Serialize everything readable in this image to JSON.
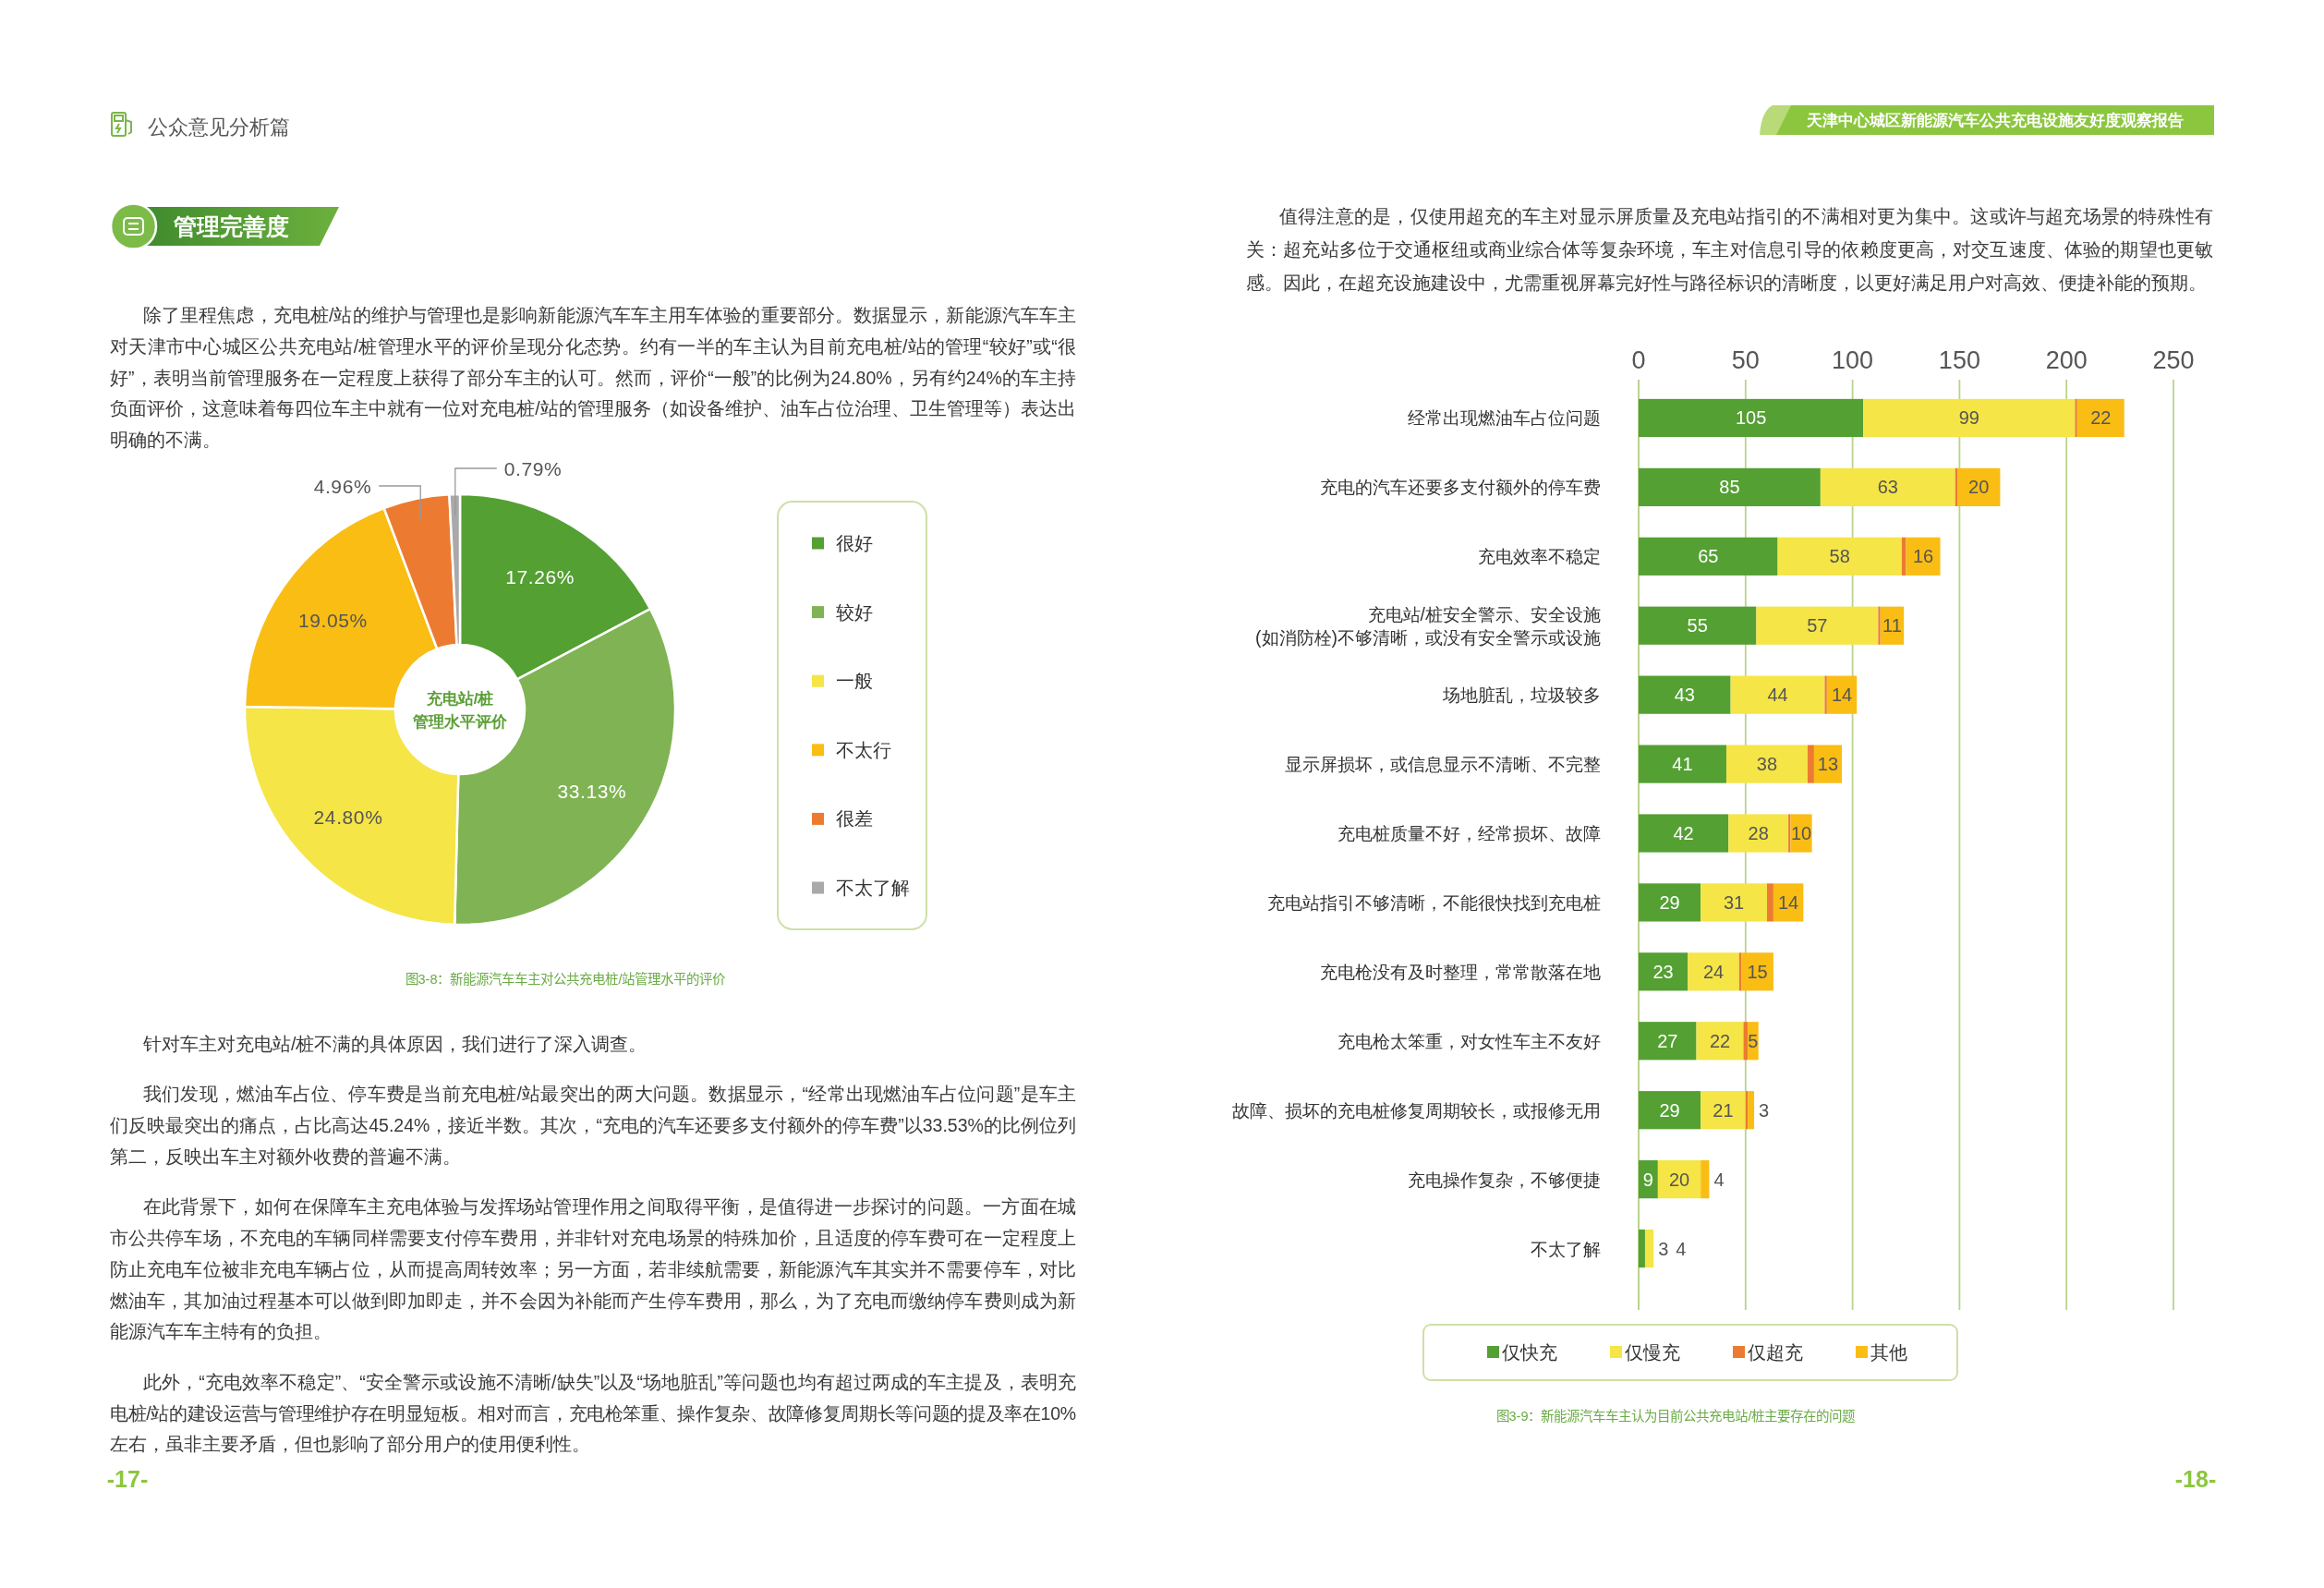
{
  "chart_data": [
    {
      "type": "other",
      "title": "公众意见分析篇",
      "subtitle": "管理完善度",
      "annotations": [
        "除了里程焦虑，充电桩/站的维护与管理也是影响新能源汽车车主用车体验的重要部分。数据显示，新能源汽车车主对天津市中心城区公共充电站/桩管理水平的评价呈现分化态势。约有一半的车主认为目前充电桩/站的管理“较好”或“很好”，表明当前管理服务在一定程度上获得了部分车主的认可。然而，评价“一般”的比例为24.80%，另有约24%的车主持负面评价，这意味着每四位车主中就有一位对充电桩/站的管理服务（如设备维护、油车占位治理、卫生管理等）表达出明确的不满。",
        "针对车主对充电站/桩不满的具体原因，我们进行了深入调查。",
        "我们发现，燃油车占位、停车费是当前充电桩/站最突出的两大问题。数据显示，“经常出现燃油车占位问题”是车主们反映最突出的痛点，占比高达45.24%，接近半数。其次，“充电的汽车还要多支付额外的停车费”以33.53%的比例位列第二，反映出车主对额外收费的普遍不满。",
        "在此背景下，如何在保障车主充电体验与发挥场站管理作用之间取得平衡，是值得进一步探讨的问题。一方面在城市公共停车场，不充电的车辆同样需要支付停车费用，并非针对充电场景的特殊加价，且适度的停车费可在一定程度上防止充电车位被非充电车辆占位，从而提高周转效率；另一方面，若非续航需要，新能源汽车其实并不需要停车，对比燃油车，其加油过程基本可以做到即加即走，并不会因为补能而产生停车费用，那么，为了充电而缴纳停车费则成为新能源汽车车主特有的负担。",
        "此外，“充电效率不稳定”、“安全警示或设施不清晰/缺失”以及“场地脏乱”等问题也均有超过两成的车主提及，表明充电桩/站的建设运营与管理维护存在明显短板。相对而言，充电枪笨重、操作复杂、故障修复周期长等问题的提及率在10%左右，虽非主要矛盾，但也影响了部分用户的使用便利性。",
        "-17-"
      ]
    },
    {
      "type": "donut",
      "title": "充电站/桩管理水平评价",
      "categories": [
        "很好",
        "较好",
        "一般",
        "不太行",
        "很差",
        "不太了解"
      ],
      "values": [
        17.26,
        33.13,
        24.8,
        19.05,
        4.96,
        0.79
      ],
      "colors": [
        "#54a033",
        "#80b354",
        "#f5e546",
        "#f9bd14",
        "#ec7b31",
        "#a9a9a9"
      ],
      "value_labels": [
        "17.26%",
        "33.13%",
        "24.80%",
        "19.05%",
        "4.96%",
        "0.79%"
      ],
      "legend": "right",
      "annotations": [
        "图3-8：新能源汽车车主对公共充电桩/站管理水平的评价"
      ]
    },
    {
      "type": "other",
      "title": "天津中心城区新能源汽车公共充电设施友好度观察报告",
      "annotations": [
        "值得注意的是，仅使用超充的车主对显示屏质量及充电站指引的不满相对更为集中。这或许与超充场景的特殊性有关：超充站多位于交通枢纽或商业综合体等复杂环境，车主对信息引导的依赖度更高，对交互速度、体验的期望也更敏感。因此，在超充设施建设中，尤需重视屏幕完好性与路径标识的清晰度，以更好满足用户对高效、便捷补能的预期。",
        "-18-"
      ]
    },
    {
      "type": "bar",
      "orientation": "horizontal",
      "stacked": true,
      "categories": [
        "经常出现燃油车占位问题",
        "充电的汽车还要多支付额外的停车费",
        "充电效率不稳定",
        "充电站/桩安全警示、安全设施(如消防栓)不够清晰，或没有安全警示或设施",
        "场地脏乱，垃圾较多",
        "显示屏损坏，或信息显示不清晰、不完整",
        "充电桩质量不好，经常损坏、故障",
        "充电站指引不够清晰，不能很快找到充电桩",
        "充电枪没有及时整理，常常散落在地",
        "充电枪太笨重，对女性车主不友好",
        "故障、损坏的充电桩修复周期较长，或报修无用",
        "充电操作复杂，不够便捷",
        "不太了解"
      ],
      "series": [
        {
          "name": "仅快充",
          "color": "#54a033",
          "values": [
            105,
            85,
            65,
            55,
            43,
            41,
            42,
            29,
            23,
            27,
            29,
            9,
            3
          ],
          "value_labels": [
            "105",
            "85",
            "65",
            "55",
            "43",
            "41",
            "42",
            "29",
            "23",
            "27",
            "29",
            "9",
            "3"
          ]
        },
        {
          "name": "仅慢充",
          "color": "#f5e546",
          "values": [
            99,
            63,
            58,
            57,
            44,
            38,
            28,
            31,
            24,
            22,
            21,
            20,
            4
          ],
          "value_labels": [
            "99",
            "63",
            "58",
            "57",
            "44",
            "38",
            "28",
            "31",
            "24",
            "22",
            "21",
            "20",
            "4"
          ]
        },
        {
          "name": "仅超充",
          "color": "#ec7b31",
          "values": [
            1,
            1,
            2,
            1,
            1,
            3,
            1,
            3,
            1,
            2,
            1,
            null,
            null
          ]
        },
        {
          "name": "其他",
          "color": "#f9bd14",
          "values": [
            22,
            20,
            16,
            11,
            14,
            13,
            10,
            14,
            15,
            5,
            3,
            4,
            null
          ],
          "value_labels": [
            "22",
            "20",
            "16",
            "11",
            "14",
            "13",
            "10",
            "14",
            "15",
            "5",
            "3",
            "4",
            null
          ]
        }
      ],
      "xlim": [
        0,
        250
      ],
      "xticks": [
        0,
        50,
        100,
        150,
        200,
        250
      ],
      "grid": "x",
      "legend": "bottom",
      "annotations": [
        "图3-9：新能源汽车车主认为目前公共充电站/桩主要存在的问题"
      ]
    }
  ]
}
